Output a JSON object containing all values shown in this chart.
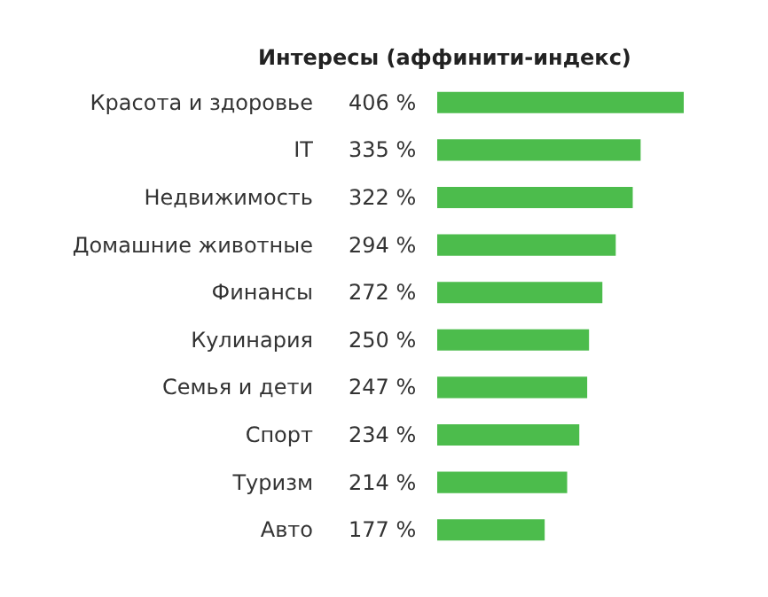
{
  "chart_data": {
    "type": "bar",
    "orientation": "horizontal",
    "title": "Интересы (аффинити-индекс)",
    "categories": [
      "Красота и здоровье",
      "IT",
      "Недвижимость",
      "Домашние животные",
      "Финансы",
      "Кулинария",
      "Семья и дети",
      "Спорт",
      "Туризм",
      "Авто"
    ],
    "values": [
      406,
      335,
      322,
      294,
      272,
      250,
      247,
      234,
      214,
      177
    ],
    "value_labels": [
      "406 %",
      "335 %",
      "322 %",
      "294 %",
      "272 %",
      "250 %",
      "247 %",
      "234 %",
      "214 %",
      "177 %"
    ],
    "color": "#4cbc4c"
  }
}
